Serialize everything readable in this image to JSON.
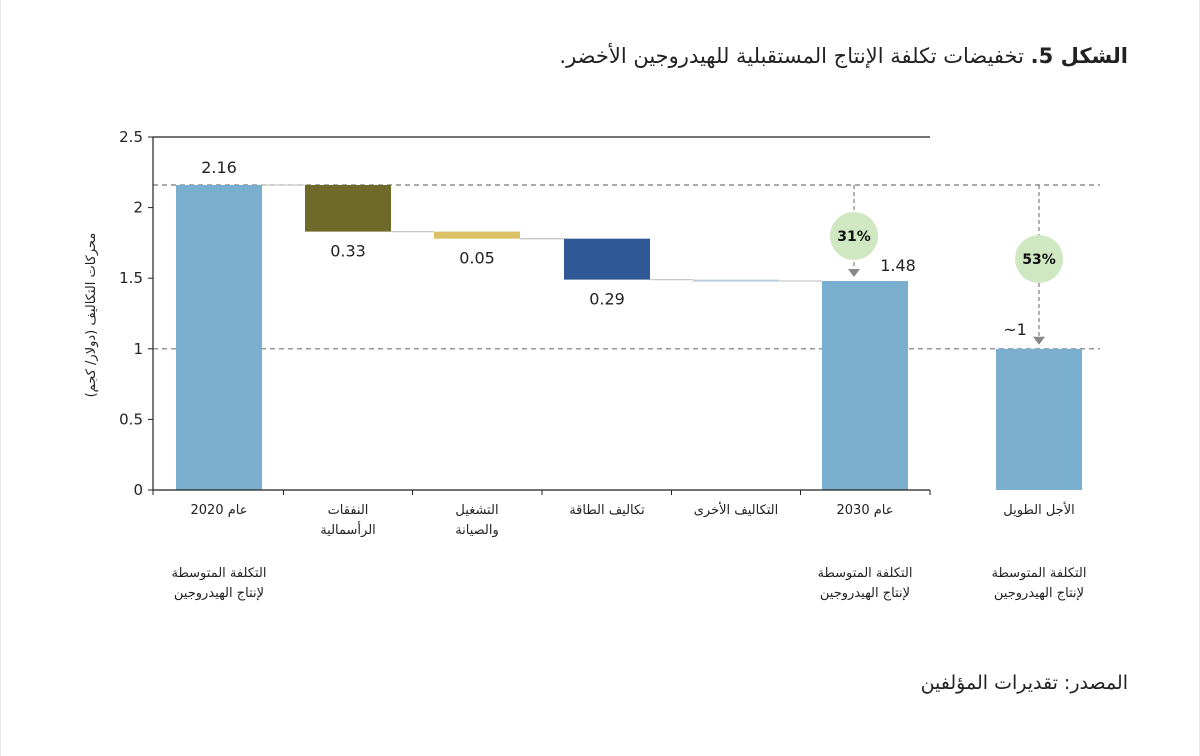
{
  "figure": {
    "label": "الشكل 5.",
    "title": "تخفيضات تكلفة الإنتاج المستقبلية للهيدروجين الأخضر."
  },
  "source": "المصدر: تقديرات المؤلفين",
  "chart_data": {
    "type": "waterfall",
    "ylabel": "محركات التكاليف (دولار/ كجم)",
    "ylim": [
      0,
      2.5
    ],
    "yticks": [
      "0",
      "0.5",
      "1",
      "1.5",
      "2",
      "2.5"
    ],
    "categories": [
      {
        "line1": "عام 2020",
        "line2": "",
        "sub1": "التكلفة المتوسطة",
        "sub2": "لإنتاج الهيدروجين"
      },
      {
        "line1": "النفقات",
        "line2": "الرأسمالية",
        "sub1": "",
        "sub2": ""
      },
      {
        "line1": "التشغيل",
        "line2": "والصيانة",
        "sub1": "",
        "sub2": ""
      },
      {
        "line1": "تكاليف الطاقة",
        "line2": "",
        "sub1": "",
        "sub2": ""
      },
      {
        "line1": "التكاليف الأخرى",
        "line2": "",
        "sub1": "",
        "sub2": ""
      },
      {
        "line1": "عام 2030",
        "line2": "",
        "sub1": "التكلفة المتوسطة",
        "sub2": "لإنتاج الهيدروجين"
      },
      {
        "line1": "الأجل الطويل",
        "line2": "",
        "sub1": "التكلفة المتوسطة",
        "sub2": "لإنتاج الهيدروجين"
      }
    ],
    "bars": [
      {
        "kind": "total",
        "low": 0,
        "high": 2.16,
        "label": "2.16",
        "color": "#7aafcf"
      },
      {
        "kind": "step",
        "low": 1.83,
        "high": 2.16,
        "label": "0.33",
        "color": "#6f6a2a"
      },
      {
        "kind": "step",
        "low": 1.78,
        "high": 1.83,
        "label": "0.05",
        "color": "#dcc066"
      },
      {
        "kind": "step",
        "low": 1.49,
        "high": 1.78,
        "label": "0.29",
        "color": "#2e5896"
      },
      {
        "kind": "step",
        "low": 1.48,
        "high": 1.49,
        "label": "",
        "color": "#b8cfe0"
      },
      {
        "kind": "total",
        "low": 0,
        "high": 1.48,
        "label": "1.48",
        "color": "#7aafcf"
      },
      {
        "kind": "total",
        "low": 0,
        "high": 1.0,
        "label": "~1",
        "color": "#7aafcf"
      }
    ],
    "reference_lines": [
      2.16,
      1.0
    ],
    "reductions": [
      {
        "label": "31%",
        "from": 2.16,
        "to": 1.48,
        "target_bar": 5
      },
      {
        "label": "53%",
        "from": 2.16,
        "to": 1.0,
        "target_bar": 6
      }
    ],
    "colors": {
      "badge_fill": "#cfe8c2",
      "arrow": "#888888"
    }
  }
}
